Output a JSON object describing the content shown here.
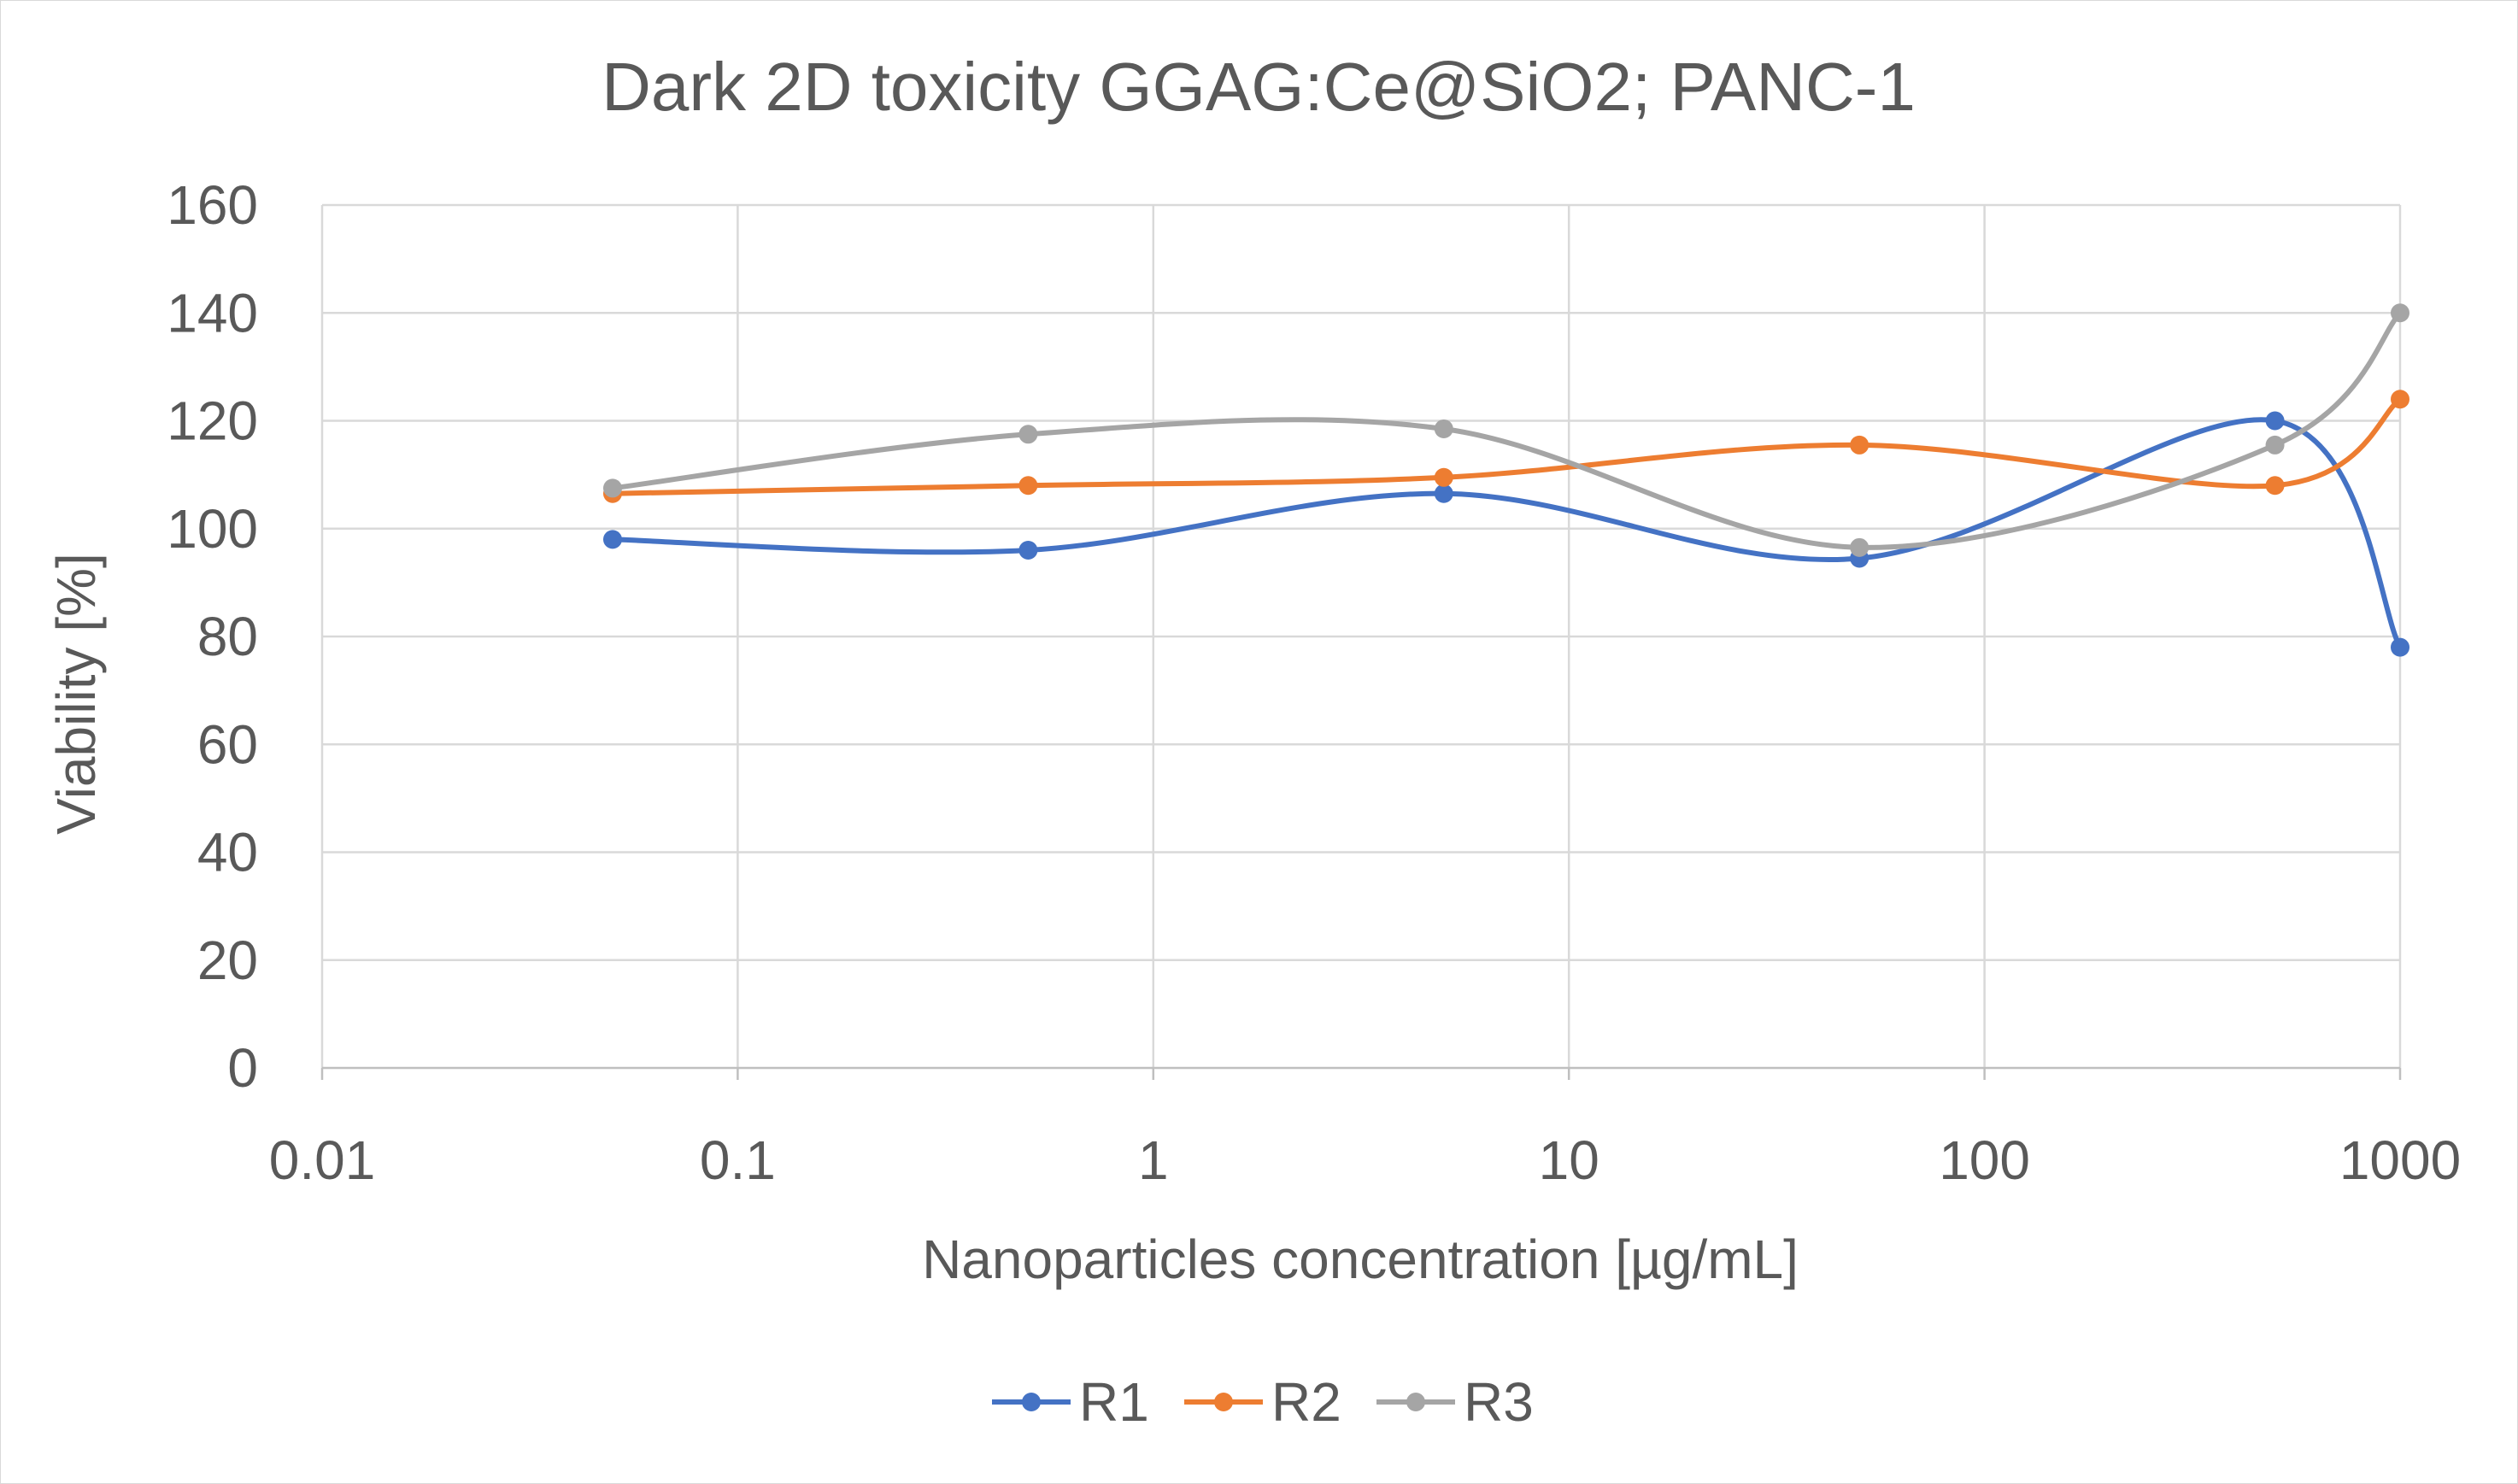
{
  "chart_data": {
    "type": "line",
    "title": "Dark 2D toxicity GGAG:Ce@SiO2; PANC-1",
    "xlabel": "Nanoparticles concentration [µg/mL]",
    "ylabel": "Viability [%]",
    "xscale": "log",
    "xlim": [
      0.01,
      1000
    ],
    "ylim": [
      0,
      160
    ],
    "x_ticks": [
      0.01,
      0.1,
      1,
      10,
      100,
      1000
    ],
    "x_tick_labels": [
      "0.01",
      "0.1",
      "1",
      "10",
      "100",
      "1000"
    ],
    "y_ticks": [
      0,
      20,
      40,
      60,
      80,
      100,
      120,
      140,
      160
    ],
    "y_tick_labels": [
      "0",
      "20",
      "40",
      "60",
      "80",
      "100",
      "120",
      "140",
      "160"
    ],
    "grid": true,
    "smooth": true,
    "x": [
      0.05,
      0.5,
      5,
      50,
      500,
      1000
    ],
    "series": [
      {
        "name": "R1",
        "color": "#4472c4",
        "values": [
          98,
          96,
          106.5,
          94.5,
          120,
          78
        ]
      },
      {
        "name": "R2",
        "color": "#ed7d31",
        "values": [
          106.5,
          108,
          109.5,
          115.5,
          108,
          124
        ]
      },
      {
        "name": "R3",
        "color": "#a5a5a5",
        "values": [
          107.5,
          117.5,
          118.5,
          96.5,
          115.5,
          140
        ]
      }
    ],
    "legend_position": "bottom-center"
  }
}
